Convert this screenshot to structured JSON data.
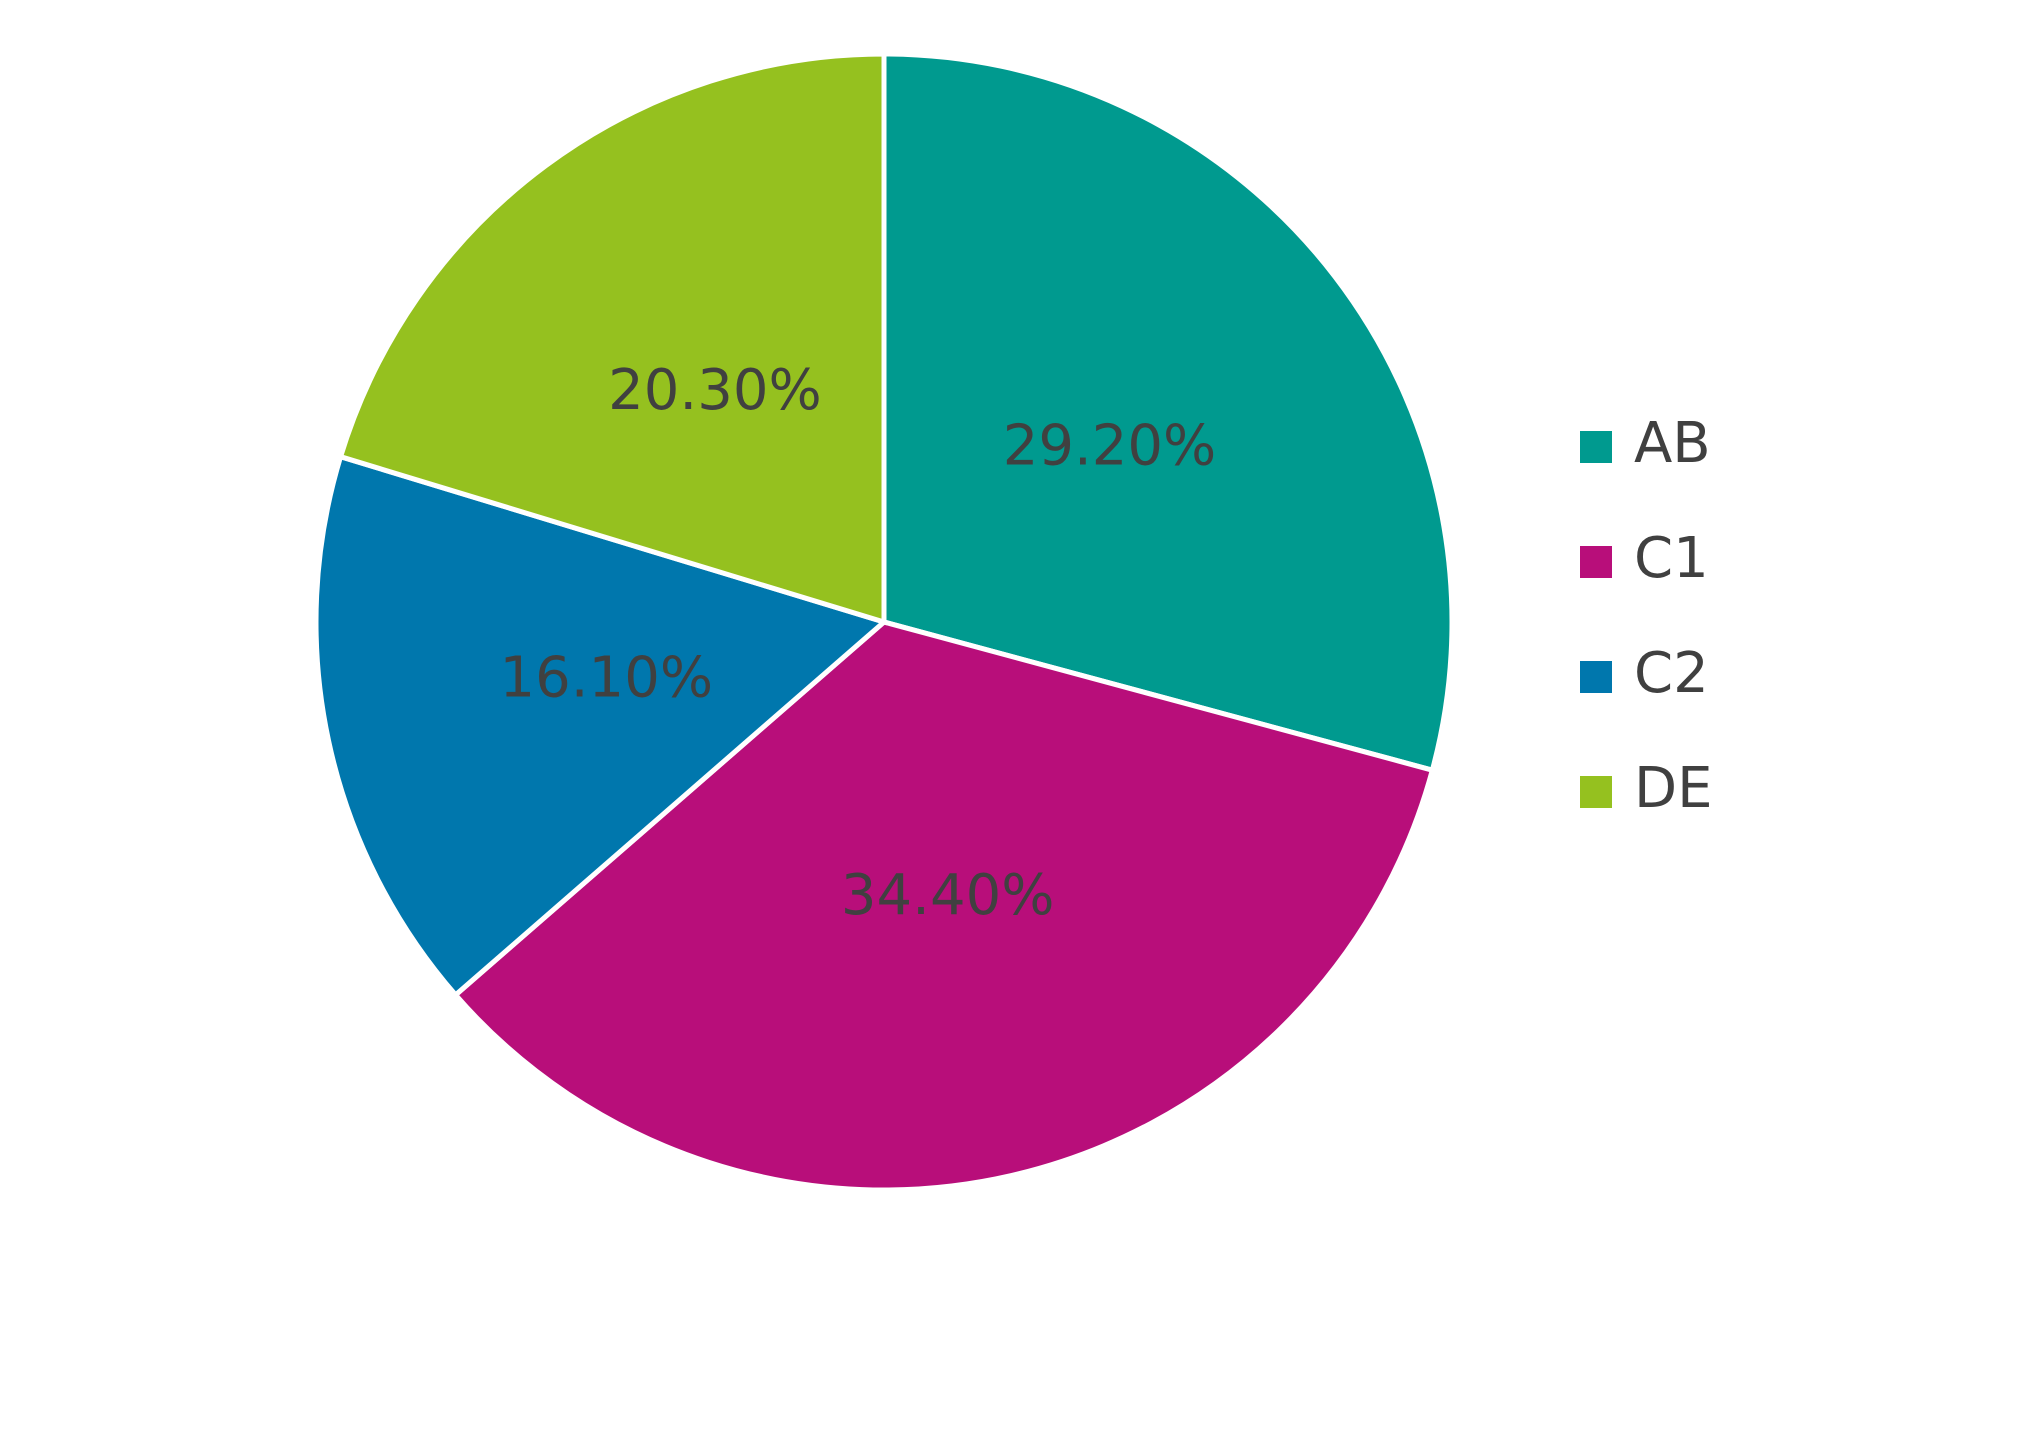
{
  "chart_data": {
    "type": "pie",
    "categories": [
      "AB",
      "C1",
      "C2",
      "DE"
    ],
    "values": [
      29.2,
      34.4,
      16.1,
      20.3
    ],
    "value_labels": [
      "29.20%",
      "34.40%",
      "16.10%",
      "20.30%"
    ],
    "colors": [
      "#009a8f",
      "#b80e7a",
      "#0077ad",
      "#95c11f"
    ],
    "legend": "right"
  }
}
